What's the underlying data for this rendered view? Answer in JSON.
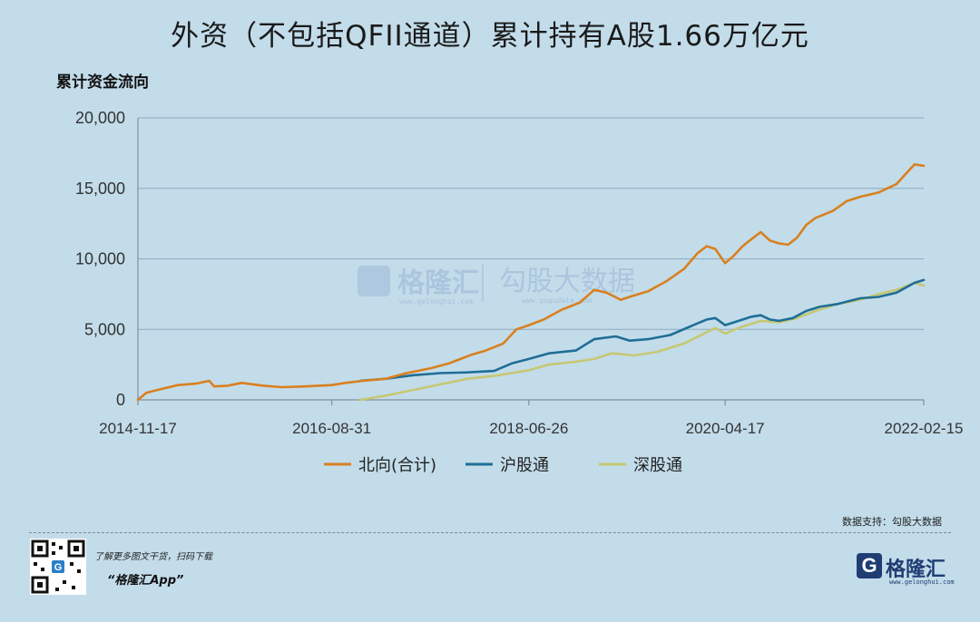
{
  "header": {
    "title": "外资（不包括QFII通道）累计持有A股1.66万亿元",
    "unit_label": "累计资金流向"
  },
  "watermark": {
    "brand": "格隆汇",
    "brand_url": "www.gelonghui.com",
    "data_brand": "勾股大数据",
    "data_url": "www.gogudata.com"
  },
  "footer": {
    "source": "数据支持：勾股大数据",
    "promo_line1": "了解更多图文干货，扫码下载",
    "promo_line2": "“格隆汇App”",
    "brand_name": "格隆汇",
    "brand_icon": "G",
    "brand_url": "www.gelonghui.com"
  },
  "colors": {
    "background": "#c3dcea",
    "north": "#d9801f",
    "shanghai": "#1f6e96",
    "shenzhen": "#c6c873",
    "grid": "#8fa9c0"
  },
  "chart_data": {
    "type": "line",
    "title": "外资（不包括QFII通道）累计持有A股1.66万亿元",
    "ylabel": "累计资金流向",
    "xlabel": "",
    "ylim": [
      0,
      20000
    ],
    "yticks": [
      0,
      5000,
      10000,
      15000,
      20000
    ],
    "ytick_labels": [
      "0",
      "5,000",
      "10,000",
      "15,000",
      "20,000"
    ],
    "xlim": [
      "2014-11-17",
      "2022-02-15"
    ],
    "xticks": [
      "2014-11-17",
      "2016-08-31",
      "2018-06-26",
      "2020-04-17",
      "2022-02-15"
    ],
    "grid": "horizontal",
    "legend_position": "bottom-center",
    "series": [
      {
        "name": "北向(合计)",
        "color": "#d9801f",
        "points": [
          [
            "2014-11-17",
            0
          ],
          [
            "2014-12-15",
            500
          ],
          [
            "2015-02-01",
            750
          ],
          [
            "2015-04-01",
            1050
          ],
          [
            "2015-06-01",
            1150
          ],
          [
            "2015-07-15",
            1350
          ],
          [
            "2015-08-01",
            950
          ],
          [
            "2015-09-15",
            1000
          ],
          [
            "2015-11-01",
            1200
          ],
          [
            "2016-01-15",
            1000
          ],
          [
            "2016-03-15",
            900
          ],
          [
            "2016-06-01",
            950
          ],
          [
            "2016-08-31",
            1050
          ],
          [
            "2016-10-15",
            1200
          ],
          [
            "2016-12-15",
            1350
          ],
          [
            "2017-03-01",
            1500
          ],
          [
            "2017-05-01",
            1850
          ],
          [
            "2017-08-01",
            2250
          ],
          [
            "2017-10-01",
            2600
          ],
          [
            "2017-12-15",
            3200
          ],
          [
            "2018-02-01",
            3500
          ],
          [
            "2018-04-01",
            4000
          ],
          [
            "2018-05-15",
            5000
          ],
          [
            "2018-06-26",
            5300
          ],
          [
            "2018-08-15",
            5700
          ],
          [
            "2018-10-15",
            6400
          ],
          [
            "2018-12-15",
            6900
          ],
          [
            "2019-02-01",
            7800
          ],
          [
            "2019-03-15",
            7600
          ],
          [
            "2019-05-01",
            7100
          ],
          [
            "2019-06-15",
            7400
          ],
          [
            "2019-08-01",
            7700
          ],
          [
            "2019-10-01",
            8400
          ],
          [
            "2019-12-01",
            9300
          ],
          [
            "2020-01-15",
            10400
          ],
          [
            "2020-02-15",
            10900
          ],
          [
            "2020-03-15",
            10700
          ],
          [
            "2020-04-17",
            9700
          ],
          [
            "2020-05-15",
            10200
          ],
          [
            "2020-06-15",
            10900
          ],
          [
            "2020-07-15",
            11400
          ],
          [
            "2020-08-15",
            11900
          ],
          [
            "2020-09-15",
            11300
          ],
          [
            "2020-10-15",
            11100
          ],
          [
            "2020-11-15",
            11000
          ],
          [
            "2020-12-15",
            11500
          ],
          [
            "2021-01-15",
            12400
          ],
          [
            "2021-02-15",
            12900
          ],
          [
            "2021-04-15",
            13400
          ],
          [
            "2021-06-01",
            14100
          ],
          [
            "2021-07-15",
            14400
          ],
          [
            "2021-09-15",
            14700
          ],
          [
            "2021-11-15",
            15300
          ],
          [
            "2021-12-15",
            16000
          ],
          [
            "2022-01-15",
            16700
          ],
          [
            "2022-02-15",
            16600
          ]
        ]
      },
      {
        "name": "沪股通",
        "color": "#1f6e96",
        "points": [
          [
            "2016-12-05",
            1350
          ],
          [
            "2017-03-01",
            1500
          ],
          [
            "2017-06-01",
            1750
          ],
          [
            "2017-09-01",
            1900
          ],
          [
            "2017-12-01",
            1950
          ],
          [
            "2018-03-01",
            2050
          ],
          [
            "2018-05-01",
            2600
          ],
          [
            "2018-06-26",
            2900
          ],
          [
            "2018-09-01",
            3300
          ],
          [
            "2018-12-01",
            3500
          ],
          [
            "2019-02-01",
            4300
          ],
          [
            "2019-04-15",
            4500
          ],
          [
            "2019-06-01",
            4200
          ],
          [
            "2019-08-01",
            4300
          ],
          [
            "2019-10-15",
            4600
          ],
          [
            "2020-01-01",
            5300
          ],
          [
            "2020-02-15",
            5700
          ],
          [
            "2020-03-15",
            5800
          ],
          [
            "2020-04-17",
            5300
          ],
          [
            "2020-06-01",
            5600
          ],
          [
            "2020-07-15",
            5900
          ],
          [
            "2020-08-15",
            6000
          ],
          [
            "2020-09-15",
            5700
          ],
          [
            "2020-10-15",
            5600
          ],
          [
            "2020-12-01",
            5800
          ],
          [
            "2021-01-15",
            6300
          ],
          [
            "2021-03-01",
            6600
          ],
          [
            "2021-05-01",
            6800
          ],
          [
            "2021-07-15",
            7200
          ],
          [
            "2021-09-15",
            7300
          ],
          [
            "2021-11-15",
            7600
          ],
          [
            "2022-01-15",
            8300
          ],
          [
            "2022-02-15",
            8500
          ]
        ]
      },
      {
        "name": "深股通",
        "color": "#c6c873",
        "points": [
          [
            "2016-12-05",
            0
          ],
          [
            "2017-03-01",
            300
          ],
          [
            "2017-06-01",
            700
          ],
          [
            "2017-09-01",
            1100
          ],
          [
            "2017-12-01",
            1500
          ],
          [
            "2018-03-01",
            1700
          ],
          [
            "2018-06-26",
            2100
          ],
          [
            "2018-09-01",
            2500
          ],
          [
            "2018-12-01",
            2700
          ],
          [
            "2019-02-01",
            2900
          ],
          [
            "2019-04-01",
            3300
          ],
          [
            "2019-06-15",
            3150
          ],
          [
            "2019-09-01",
            3400
          ],
          [
            "2019-12-01",
            4000
          ],
          [
            "2020-02-15",
            4800
          ],
          [
            "2020-03-15",
            5100
          ],
          [
            "2020-04-17",
            4700
          ],
          [
            "2020-06-15",
            5200
          ],
          [
            "2020-08-15",
            5600
          ],
          [
            "2020-10-15",
            5500
          ],
          [
            "2020-12-15",
            5800
          ],
          [
            "2021-02-15",
            6300
          ],
          [
            "2021-05-01",
            6800
          ],
          [
            "2021-07-15",
            7100
          ],
          [
            "2021-09-15",
            7500
          ],
          [
            "2021-11-15",
            7800
          ],
          [
            "2022-01-15",
            8300
          ],
          [
            "2022-02-15",
            8100
          ]
        ]
      }
    ]
  }
}
